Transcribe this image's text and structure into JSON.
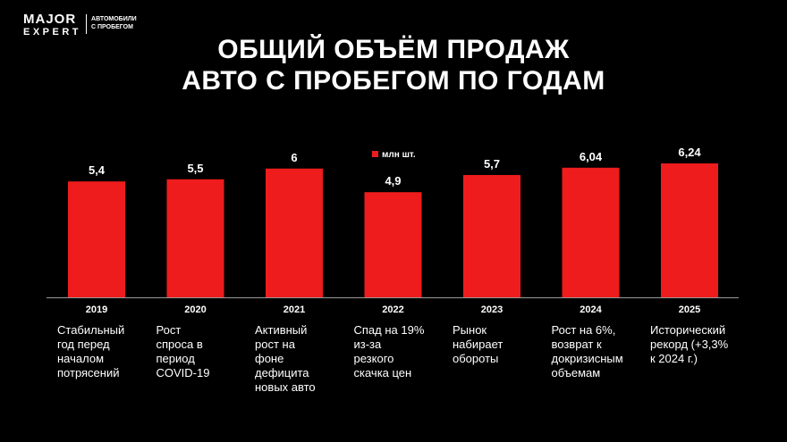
{
  "logo": {
    "line1": "MAJOR",
    "line2": "EXPERT",
    "tagline1": "АВТОМОБИЛИ",
    "tagline2": "С ПРОБЕГОМ"
  },
  "header": {
    "title_line1": "ОБЩИЙ ОБЪЁМ ПРОДАЖ",
    "title_line2": "АВТО С ПРОБЕГОМ ПО ГОДАМ"
  },
  "colors": {
    "bar": "#ee1c1c",
    "background": "#000000",
    "text": "#ffffff",
    "axis": "#9a9a9a"
  },
  "chart_data": {
    "type": "bar",
    "title": "",
    "xlabel": "",
    "ylabel": "",
    "legend": {
      "label": "млн шт.",
      "placement": "top-center"
    },
    "categories": [
      "2019",
      "2020",
      "2021",
      "2022",
      "2023",
      "2024",
      "2025"
    ],
    "values": [
      5.4,
      5.5,
      6,
      4.9,
      5.7,
      6.04,
      6.24
    ],
    "value_labels": [
      "5,4",
      "5,5",
      "6",
      "4,9",
      "5,7",
      "6,04",
      "6,24"
    ],
    "ylim": [
      0,
      6.24
    ],
    "grid": false
  },
  "descriptions": [
    [
      "Стабильный",
      "год перед",
      "началом",
      "потрясений"
    ],
    [
      "Рост",
      "спроса в",
      "период",
      "COVID-19"
    ],
    [
      "Активный",
      "рост на",
      "фоне",
      "дефицита",
      "новых авто"
    ],
    [
      "Спад на 19%",
      "из-за",
      "резкого",
      "скачка цен"
    ],
    [
      "Рынок",
      "набирает",
      "обороты"
    ],
    [
      "Рост на 6%,",
      "возврат к",
      "докризисным",
      "объемам"
    ],
    [
      "Исторический",
      "рекорд (+3,3%",
      "к 2024 г.)"
    ]
  ]
}
